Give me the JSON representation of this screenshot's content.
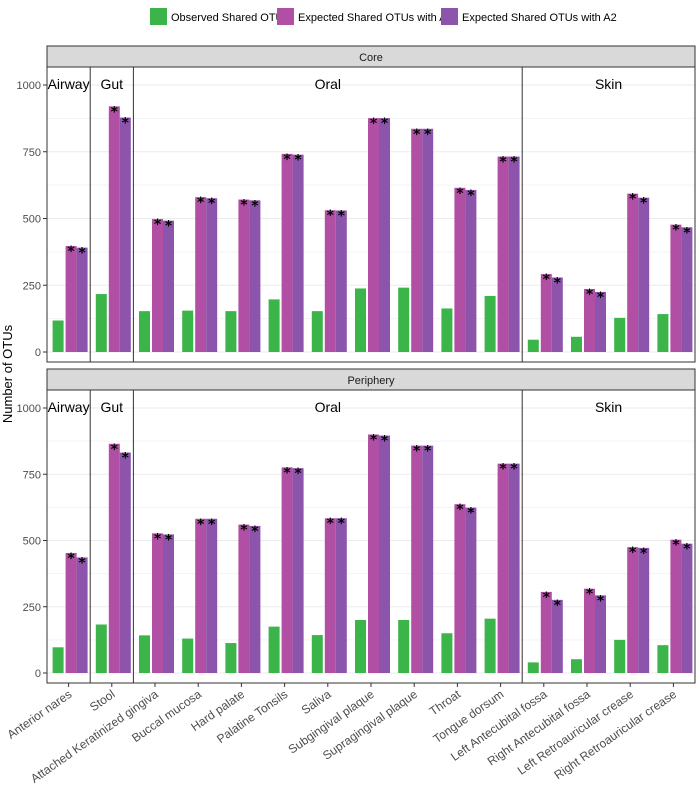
{
  "chart_data": {
    "type": "bar",
    "ylabel": "Number of OTUs",
    "ylim": [
      0,
      1000
    ],
    "yticks": [
      0,
      250,
      500,
      750,
      1000
    ],
    "grid": true,
    "legend_position": "top",
    "series": [
      {
        "name": "Observed Shared OTUs",
        "color": "#3bb44a"
      },
      {
        "name": "Expected Shared OTUs with A1",
        "color": "#b14fa4"
      },
      {
        "name": "Expected Shared OTUs with A2",
        "color": "#8c55ab"
      }
    ],
    "groups": [
      {
        "name": "Airway",
        "categories": [
          "Anterior nares"
        ]
      },
      {
        "name": "Gut",
        "categories": [
          "Stool"
        ]
      },
      {
        "name": "Oral",
        "categories": [
          "Attached Keratinized gingiva",
          "Buccal mucosa",
          "Hard palate",
          "Palatine Tonsils",
          "Saliva",
          "Subgingival plaque",
          "Supragingival plaque",
          "Throat",
          "Tongue dorsum"
        ]
      },
      {
        "name": "Skin",
        "categories": [
          "Left Antecubital fossa",
          "Right Antecubital fossa",
          "Left Retroauricular crease",
          "Right Retroauricular crease"
        ]
      }
    ],
    "categories": [
      "Anterior nares",
      "Stool",
      "Attached Keratinized gingiva",
      "Buccal mucosa",
      "Hard palate",
      "Palatine Tonsils",
      "Saliva",
      "Subgingival plaque",
      "Supragingival plaque",
      "Throat",
      "Tongue dorsum",
      "Left Antecubital fossa",
      "Right Antecubital fossa",
      "Left Retroauricular crease",
      "Right Retroauricular crease"
    ],
    "significance_marker": "*",
    "panels": [
      {
        "title": "Core",
        "observed": [
          118,
          217,
          153,
          155,
          153,
          197,
          153,
          238,
          241,
          163,
          210,
          46,
          57,
          128,
          142
        ],
        "expected_a1": [
          397,
          920,
          498,
          580,
          571,
          742,
          531,
          876,
          836,
          615,
          732,
          292,
          236,
          593,
          477
        ],
        "expected_a2": [
          391,
          878,
          492,
          576,
          568,
          739,
          530,
          876,
          836,
          607,
          732,
          279,
          225,
          578,
          467
        ]
      },
      {
        "title": "Periphery",
        "observed": [
          97,
          183,
          142,
          130,
          113,
          175,
          143,
          200,
          200,
          150,
          205,
          40,
          52,
          125,
          105
        ],
        "expected_a1": [
          453,
          865,
          527,
          582,
          560,
          776,
          584,
          900,
          858,
          637,
          790,
          306,
          318,
          475,
          503
        ],
        "expected_a2": [
          436,
          832,
          523,
          582,
          555,
          773,
          584,
          896,
          858,
          624,
          790,
          276,
          293,
          472,
          488
        ]
      }
    ]
  }
}
